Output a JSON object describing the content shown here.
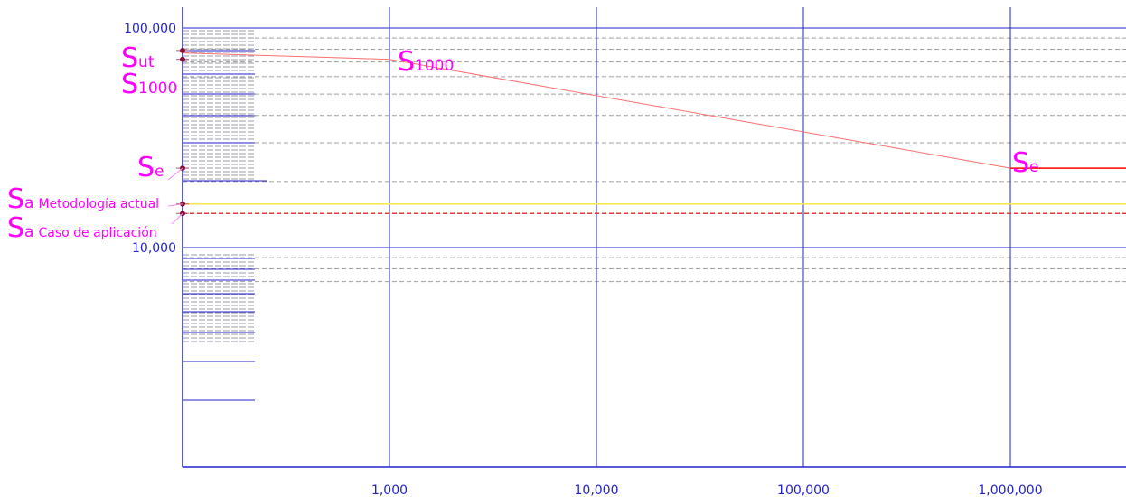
{
  "chart_data": {
    "type": "line",
    "title": "",
    "xlabel": "",
    "ylabel": "",
    "x_scale": "log",
    "y_scale": "log",
    "xlim": [
      100,
      4000000
    ],
    "ylim": [
      6500,
      100000
    ],
    "x_ticks": [
      1000,
      10000,
      100000,
      1000000
    ],
    "x_tick_labels": [
      "1,000",
      "10,000",
      "100,000",
      "1,000,000"
    ],
    "y_ticks": [
      10000,
      100000
    ],
    "y_tick_labels": [
      "10,000",
      "100,000"
    ],
    "grid": true,
    "colors": {
      "axis": "#2222cc",
      "tick_text": "#2222cc",
      "sn_curve": "#ff6f6f",
      "endurance_line": "#ff0000",
      "yellow_line": "#f2e94a",
      "red_dashed_line": "#d04040",
      "annotation": "#ff00ff",
      "grid_dashed": "#a0a0a0",
      "marker": "#8b0f3f"
    },
    "series": [
      {
        "x": [
          100,
          1000,
          1000000,
          4000000
        ],
        "y": [
          77000,
          72000,
          23000,
          23000
        ]
      }
    ],
    "horizontal_lines": [
      {
        "y": 15800,
        "style": "solid-yellow"
      },
      {
        "y": 14300,
        "style": "dashed-red"
      }
    ],
    "markers": [
      {
        "y": 79000
      },
      {
        "y": 72000
      },
      {
        "y": 23000
      },
      {
        "y": 15800
      },
      {
        "y": 14300
      }
    ],
    "annotations": [
      {
        "main": "S",
        "sub": "ut",
        "suffix": ""
      },
      {
        "main": "S",
        "sub": "1000",
        "suffix": ""
      },
      {
        "main": "S",
        "sub": "e",
        "suffix": ""
      },
      {
        "main": "S",
        "sub": "a",
        "suffix": "Metodología actual"
      },
      {
        "main": "S",
        "sub": "a",
        "suffix": "Caso de aplicación"
      },
      {
        "main": "S",
        "sub": "1000",
        "suffix": ""
      },
      {
        "main": "S",
        "sub": "e",
        "suffix": ""
      }
    ]
  }
}
